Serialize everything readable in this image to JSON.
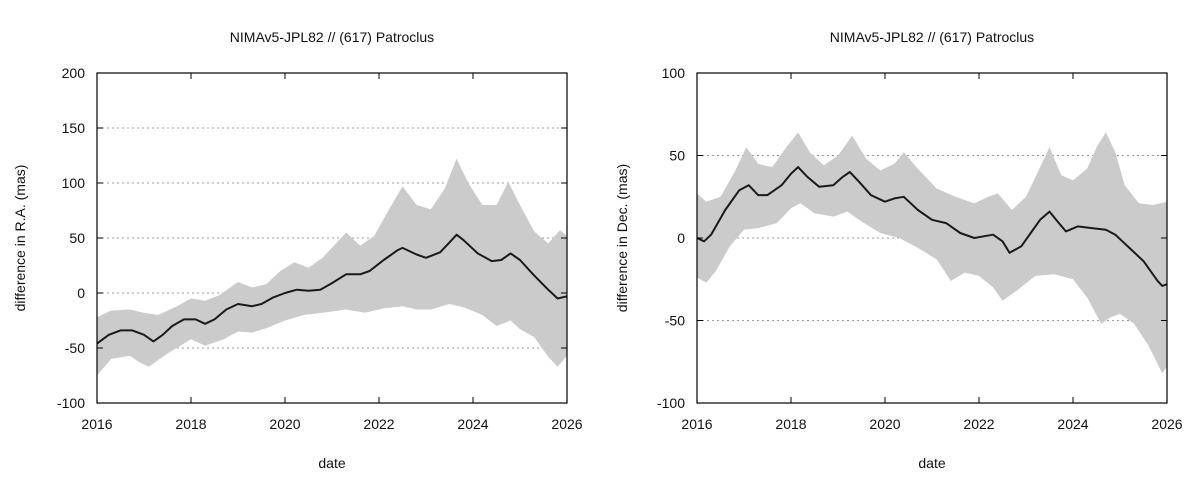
{
  "chart_data": [
    {
      "type": "line",
      "title": "NIMAv5-JPL82 // (617) Patroclus",
      "xlabel": "date",
      "ylabel": "difference in R.A. (mas)",
      "xlim": [
        2016,
        2026
      ],
      "ylim": [
        -100,
        200
      ],
      "x_ticks": [
        2016,
        2018,
        2020,
        2022,
        2024,
        2026
      ],
      "y_ticks": [
        -100,
        -50,
        0,
        50,
        100,
        150,
        200
      ],
      "grid": "horizontal dashed",
      "series": [
        {
          "kind": "line",
          "color": "#1a1a1a",
          "points": [
            [
              2016.0,
              -46
            ],
            [
              2016.25,
              -38
            ],
            [
              2016.5,
              -34
            ],
            [
              2016.75,
              -34
            ],
            [
              2017.0,
              -38
            ],
            [
              2017.2,
              -44
            ],
            [
              2017.4,
              -38
            ],
            [
              2017.6,
              -30
            ],
            [
              2017.85,
              -24
            ],
            [
              2018.1,
              -24
            ],
            [
              2018.3,
              -28
            ],
            [
              2018.5,
              -24
            ],
            [
              2018.75,
              -15
            ],
            [
              2019.0,
              -10
            ],
            [
              2019.3,
              -12
            ],
            [
              2019.5,
              -10
            ],
            [
              2019.75,
              -4
            ],
            [
              2020.0,
              0
            ],
            [
              2020.25,
              3
            ],
            [
              2020.5,
              2
            ],
            [
              2020.75,
              3
            ],
            [
              2021.0,
              9
            ],
            [
              2021.3,
              17
            ],
            [
              2021.6,
              17
            ],
            [
              2021.8,
              20
            ],
            [
              2022.1,
              30
            ],
            [
              2022.4,
              39
            ],
            [
              2022.5,
              41
            ],
            [
              2022.8,
              35
            ],
            [
              2023.0,
              32
            ],
            [
              2023.3,
              37
            ],
            [
              2023.5,
              46
            ],
            [
              2023.65,
              53
            ],
            [
              2023.8,
              48
            ],
            [
              2024.1,
              36
            ],
            [
              2024.4,
              29
            ],
            [
              2024.6,
              30
            ],
            [
              2024.8,
              36
            ],
            [
              2025.0,
              30
            ],
            [
              2025.3,
              16
            ],
            [
              2025.6,
              3
            ],
            [
              2025.8,
              -5
            ],
            [
              2026.0,
              -3
            ]
          ]
        }
      ],
      "uncertainty_band": {
        "color": "#cbcbcb",
        "upper": [
          [
            2016.0,
            -22
          ],
          [
            2016.3,
            -16
          ],
          [
            2016.7,
            -15
          ],
          [
            2017.0,
            -18
          ],
          [
            2017.3,
            -20
          ],
          [
            2017.7,
            -12
          ],
          [
            2018.0,
            -5
          ],
          [
            2018.3,
            -7
          ],
          [
            2018.6,
            -2
          ],
          [
            2019.0,
            10
          ],
          [
            2019.3,
            5
          ],
          [
            2019.6,
            8
          ],
          [
            2019.9,
            20
          ],
          [
            2020.2,
            28
          ],
          [
            2020.5,
            23
          ],
          [
            2020.8,
            32
          ],
          [
            2021.3,
            55
          ],
          [
            2021.6,
            43
          ],
          [
            2021.9,
            52
          ],
          [
            2022.2,
            75
          ],
          [
            2022.5,
            97
          ],
          [
            2022.8,
            80
          ],
          [
            2023.1,
            76
          ],
          [
            2023.4,
            95
          ],
          [
            2023.65,
            122
          ],
          [
            2023.9,
            100
          ],
          [
            2024.2,
            80
          ],
          [
            2024.5,
            80
          ],
          [
            2024.75,
            101
          ],
          [
            2025.0,
            80
          ],
          [
            2025.3,
            56
          ],
          [
            2025.6,
            45
          ],
          [
            2025.85,
            57
          ],
          [
            2026.0,
            52
          ]
        ],
        "lower": [
          [
            2016.0,
            -75
          ],
          [
            2016.3,
            -60
          ],
          [
            2016.7,
            -57
          ],
          [
            2016.9,
            -63
          ],
          [
            2017.1,
            -67
          ],
          [
            2017.5,
            -55
          ],
          [
            2018.0,
            -42
          ],
          [
            2018.3,
            -48
          ],
          [
            2018.7,
            -42
          ],
          [
            2019.0,
            -35
          ],
          [
            2019.3,
            -36
          ],
          [
            2019.6,
            -32
          ],
          [
            2020.0,
            -25
          ],
          [
            2020.4,
            -20
          ],
          [
            2020.8,
            -18
          ],
          [
            2021.3,
            -15
          ],
          [
            2021.7,
            -18
          ],
          [
            2022.1,
            -14
          ],
          [
            2022.5,
            -12
          ],
          [
            2022.8,
            -15
          ],
          [
            2023.1,
            -15
          ],
          [
            2023.5,
            -10
          ],
          [
            2023.8,
            -13
          ],
          [
            2024.2,
            -20
          ],
          [
            2024.5,
            -30
          ],
          [
            2024.8,
            -25
          ],
          [
            2025.0,
            -33
          ],
          [
            2025.3,
            -40
          ],
          [
            2025.6,
            -58
          ],
          [
            2025.8,
            -67
          ],
          [
            2026.0,
            -57
          ]
        ]
      }
    },
    {
      "type": "line",
      "title": "NIMAv5-JPL82 // (617) Patroclus",
      "xlabel": "date",
      "ylabel": "difference in Dec. (mas)",
      "xlim": [
        2016,
        2026
      ],
      "ylim": [
        -100,
        100
      ],
      "x_ticks": [
        2016,
        2018,
        2020,
        2022,
        2024,
        2026
      ],
      "y_ticks": [
        -100,
        -50,
        0,
        50,
        100
      ],
      "grid": "horizontal dashed",
      "series": [
        {
          "kind": "line",
          "color": "#1a1a1a",
          "points": [
            [
              2016.0,
              0
            ],
            [
              2016.15,
              -2
            ],
            [
              2016.3,
              2
            ],
            [
              2016.6,
              17
            ],
            [
              2016.9,
              29
            ],
            [
              2017.1,
              32
            ],
            [
              2017.3,
              26
            ],
            [
              2017.5,
              26
            ],
            [
              2017.8,
              32
            ],
            [
              2018.0,
              39
            ],
            [
              2018.15,
              43
            ],
            [
              2018.35,
              37
            ],
            [
              2018.6,
              31
            ],
            [
              2018.9,
              32
            ],
            [
              2019.1,
              37
            ],
            [
              2019.25,
              40
            ],
            [
              2019.45,
              34
            ],
            [
              2019.7,
              26
            ],
            [
              2020.0,
              22
            ],
            [
              2020.2,
              24
            ],
            [
              2020.4,
              25
            ],
            [
              2020.7,
              17
            ],
            [
              2021.0,
              11
            ],
            [
              2021.3,
              9
            ],
            [
              2021.6,
              3
            ],
            [
              2021.9,
              0
            ],
            [
              2022.1,
              1
            ],
            [
              2022.3,
              2
            ],
            [
              2022.5,
              -2
            ],
            [
              2022.65,
              -9
            ],
            [
              2022.9,
              -5
            ],
            [
              2023.1,
              3
            ],
            [
              2023.3,
              11
            ],
            [
              2023.5,
              16
            ],
            [
              2023.7,
              9
            ],
            [
              2023.85,
              4
            ],
            [
              2024.1,
              7
            ],
            [
              2024.4,
              6
            ],
            [
              2024.7,
              5
            ],
            [
              2024.9,
              2
            ],
            [
              2025.2,
              -6
            ],
            [
              2025.5,
              -14
            ],
            [
              2025.8,
              -26
            ],
            [
              2025.9,
              -29
            ],
            [
              2026.0,
              -28
            ]
          ]
        }
      ],
      "uncertainty_band": {
        "color": "#cbcbcb",
        "upper": [
          [
            2016.0,
            27
          ],
          [
            2016.2,
            22
          ],
          [
            2016.5,
            25
          ],
          [
            2016.8,
            40
          ],
          [
            2017.05,
            55
          ],
          [
            2017.3,
            45
          ],
          [
            2017.6,
            43
          ],
          [
            2017.9,
            55
          ],
          [
            2018.15,
            64
          ],
          [
            2018.4,
            52
          ],
          [
            2018.7,
            44
          ],
          [
            2019.0,
            50
          ],
          [
            2019.3,
            62
          ],
          [
            2019.6,
            48
          ],
          [
            2019.9,
            41
          ],
          [
            2020.2,
            45
          ],
          [
            2020.4,
            52
          ],
          [
            2020.7,
            42
          ],
          [
            2021.1,
            30
          ],
          [
            2021.5,
            25
          ],
          [
            2021.9,
            21
          ],
          [
            2022.2,
            25
          ],
          [
            2022.4,
            27
          ],
          [
            2022.7,
            17
          ],
          [
            2023.0,
            25
          ],
          [
            2023.25,
            40
          ],
          [
            2023.5,
            55
          ],
          [
            2023.75,
            38
          ],
          [
            2024.0,
            35
          ],
          [
            2024.3,
            42
          ],
          [
            2024.5,
            55
          ],
          [
            2024.7,
            64
          ],
          [
            2024.9,
            52
          ],
          [
            2025.1,
            32
          ],
          [
            2025.4,
            21
          ],
          [
            2025.7,
            20
          ],
          [
            2026.0,
            22
          ]
        ],
        "lower": [
          [
            2016.0,
            -24
          ],
          [
            2016.2,
            -27
          ],
          [
            2016.4,
            -20
          ],
          [
            2016.7,
            -5
          ],
          [
            2017.0,
            5
          ],
          [
            2017.3,
            6
          ],
          [
            2017.7,
            9
          ],
          [
            2018.0,
            18
          ],
          [
            2018.2,
            21
          ],
          [
            2018.5,
            15
          ],
          [
            2018.9,
            13
          ],
          [
            2019.2,
            16
          ],
          [
            2019.5,
            10
          ],
          [
            2019.9,
            3
          ],
          [
            2020.3,
            0
          ],
          [
            2020.7,
            -6
          ],
          [
            2021.1,
            -13
          ],
          [
            2021.4,
            -26
          ],
          [
            2021.7,
            -21
          ],
          [
            2022.0,
            -23
          ],
          [
            2022.3,
            -30
          ],
          [
            2022.5,
            -38
          ],
          [
            2022.8,
            -32
          ],
          [
            2023.2,
            -23
          ],
          [
            2023.6,
            -22
          ],
          [
            2024.0,
            -25
          ],
          [
            2024.3,
            -36
          ],
          [
            2024.6,
            -52
          ],
          [
            2024.8,
            -48
          ],
          [
            2025.0,
            -46
          ],
          [
            2025.3,
            -52
          ],
          [
            2025.6,
            -65
          ],
          [
            2025.9,
            -82
          ],
          [
            2026.0,
            -78
          ]
        ]
      }
    }
  ]
}
